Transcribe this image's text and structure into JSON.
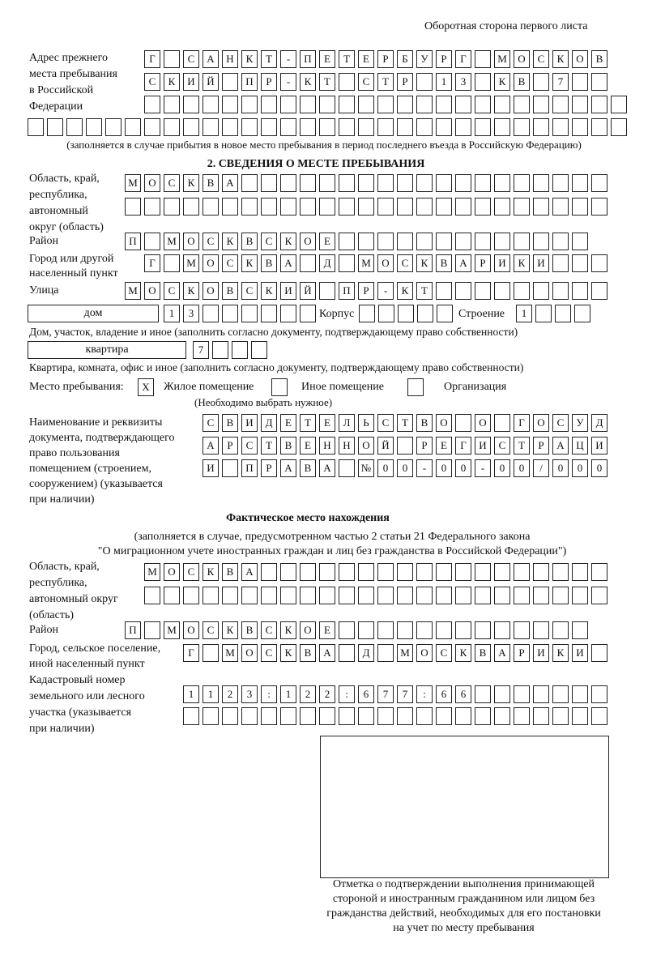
{
  "header": {
    "page_side": "Оборотная сторона первого листа"
  },
  "previous_address": {
    "label": [
      "Адрес прежнего",
      "места пребывания",
      "в Российской",
      "Федерации"
    ],
    "rows": [
      [
        "Г",
        " ",
        "С",
        "А",
        "Н",
        "К",
        "Т",
        "-",
        "П",
        "Е",
        "Т",
        "Е",
        "Р",
        "Б",
        "У",
        "Р",
        "Г",
        " ",
        "М",
        "О",
        "С",
        "К",
        "О",
        "В"
      ],
      [
        "С",
        "К",
        "И",
        "Й",
        " ",
        "П",
        "Р",
        "-",
        "К",
        "Т",
        " ",
        "С",
        "Т",
        "Р",
        " ",
        "1",
        "3",
        " ",
        "К",
        "В",
        " ",
        "7",
        " ",
        " "
      ],
      [
        " ",
        " ",
        " ",
        " ",
        " ",
        " ",
        " ",
        " ",
        " ",
        " ",
        " ",
        " ",
        " ",
        " ",
        " ",
        " ",
        " ",
        " ",
        " ",
        " ",
        " ",
        " ",
        " ",
        " ",
        " "
      ],
      [
        " ",
        " ",
        " ",
        " ",
        " ",
        " ",
        " ",
        " ",
        " ",
        " ",
        " ",
        " ",
        " ",
        " ",
        " ",
        " ",
        " ",
        " ",
        " ",
        " ",
        " ",
        " ",
        " ",
        " ",
        " ",
        " ",
        " ",
        " ",
        " ",
        " ",
        " "
      ]
    ],
    "note": "(заполняется в случае прибытия в новое место пребывания в период последнего въезда в Российскую Федерацию)"
  },
  "section2": {
    "title": "2. СВЕДЕНИЯ О МЕСТЕ ПРЕБЫВАНИЯ",
    "region_label": [
      "Область, край,",
      "республика,",
      "автономный",
      "округ (область)"
    ],
    "region_rows": [
      [
        "М",
        "О",
        "С",
        "К",
        "В",
        "А",
        " ",
        " ",
        " ",
        " ",
        " ",
        " ",
        " ",
        " ",
        " ",
        " ",
        " ",
        " ",
        " ",
        " ",
        " ",
        " ",
        " ",
        " ",
        " "
      ],
      [
        " ",
        " ",
        " ",
        " ",
        " ",
        " ",
        " ",
        " ",
        " ",
        " ",
        " ",
        " ",
        " ",
        " ",
        " ",
        " ",
        " ",
        " ",
        " ",
        " ",
        " ",
        " ",
        " ",
        " ",
        " "
      ]
    ],
    "district_label": "Район",
    "district_row": [
      "П",
      " ",
      "М",
      "О",
      "С",
      "К",
      "В",
      "С",
      "К",
      "О",
      "Е",
      " ",
      " ",
      " ",
      " ",
      " ",
      " ",
      " ",
      " ",
      " ",
      " ",
      " ",
      " ",
      " "
    ],
    "city_label": [
      "Город или другой",
      "населенный пункт"
    ],
    "city_row": [
      "Г",
      " ",
      "М",
      "О",
      "С",
      "К",
      "В",
      "А",
      " ",
      "Д",
      " ",
      "М",
      "О",
      "С",
      "К",
      "В",
      "А",
      "Р",
      "И",
      "К",
      "И",
      " ",
      " ",
      " "
    ],
    "street_label": "Улица",
    "street_row": [
      "М",
      "О",
      "С",
      "К",
      "О",
      "В",
      "С",
      "К",
      "И",
      "Й",
      " ",
      "П",
      "Р",
      "-",
      "К",
      "Т",
      " ",
      " ",
      " ",
      " ",
      " ",
      " ",
      " ",
      " ",
      " "
    ],
    "house_type": "дом",
    "house_row": [
      "1",
      "3",
      " ",
      " ",
      " ",
      " ",
      " ",
      " "
    ],
    "korpus_label": "Корпус",
    "korpus_row": [
      " ",
      " ",
      " ",
      " ",
      " "
    ],
    "building_label": "Строение",
    "building_row": [
      "1",
      " ",
      " ",
      " "
    ],
    "house_note": "Дом, участок, владение и иное (заполнить согласно документу, подтверждающему право собственности)",
    "flat_type": "квартира",
    "flat_row": [
      "7",
      " ",
      " ",
      " "
    ],
    "flat_note": "Квартира, комната, офис и иное (заполнить согласно документу, подтверждающему право собственности)",
    "stay_place_label": "Место пребывания:",
    "stay_options": [
      {
        "label": "Жилое помещение",
        "mark": "X"
      },
      {
        "label": "Иное помещение",
        "mark": ""
      },
      {
        "label": "Организация",
        "mark": ""
      }
    ],
    "stay_note": "(Необходимо выбрать нужное)",
    "doc_label": [
      "Наименование и реквизиты",
      "документа, подтверждающего",
      "право пользования",
      "помещением (строением,",
      "сооружением) (указывается",
      "при наличии)"
    ],
    "doc_rows": [
      [
        "С",
        "В",
        "И",
        "Д",
        "Е",
        "Т",
        "Е",
        "Л",
        "Ь",
        "С",
        "Т",
        "В",
        "О",
        " ",
        "О",
        " ",
        "Г",
        "О",
        "С",
        "У",
        "Д"
      ],
      [
        "А",
        "Р",
        "С",
        "Т",
        "В",
        "Е",
        "Н",
        "Н",
        "О",
        "Й",
        " ",
        "Р",
        "Е",
        "Г",
        "И",
        "С",
        "Т",
        "Р",
        "А",
        "Ц",
        "И"
      ],
      [
        "И",
        " ",
        "П",
        "Р",
        "А",
        "В",
        "А",
        " ",
        "№",
        "0",
        "0",
        "-",
        "0",
        "0",
        "-",
        "0",
        "0",
        "/",
        "0",
        "0",
        "0"
      ]
    ]
  },
  "actual": {
    "title": "Фактическое место нахождения",
    "note_lines": [
      "(заполняется в случае, предусмотренном частью 2 статьи 21 Федерального закона",
      "\"О миграционном учете иностранных граждан и лиц без гражданства в Российской Федерации\")"
    ],
    "region_label": [
      "Область, край,",
      "республика,",
      "автономный округ",
      "(область)"
    ],
    "region_rows": [
      [
        "М",
        "О",
        "С",
        "К",
        "В",
        "А",
        " ",
        " ",
        " ",
        " ",
        " ",
        " ",
        " ",
        " ",
        " ",
        " ",
        " ",
        " ",
        " ",
        " ",
        " ",
        " ",
        " ",
        " "
      ],
      [
        " ",
        " ",
        " ",
        " ",
        " ",
        " ",
        " ",
        " ",
        " ",
        " ",
        " ",
        " ",
        " ",
        " ",
        " ",
        " ",
        " ",
        " ",
        " ",
        " ",
        " ",
        " ",
        " ",
        " "
      ]
    ],
    "district_label": "Район",
    "district_row": [
      "П",
      " ",
      "М",
      "О",
      "С",
      "К",
      "В",
      "С",
      "К",
      "О",
      "Е",
      " ",
      " ",
      " ",
      " ",
      " ",
      " ",
      " ",
      " ",
      " ",
      " ",
      " ",
      " ",
      " "
    ],
    "city_label": [
      "Город, сельское поселение,",
      "иной населенный пункт"
    ],
    "city_row": [
      "Г",
      " ",
      "М",
      "О",
      "С",
      "К",
      "В",
      "А",
      " ",
      "Д",
      " ",
      "М",
      "О",
      "С",
      "К",
      "В",
      "А",
      "Р",
      "И",
      "К",
      "И",
      " "
    ],
    "cadastral_label": [
      "Кадастровый номер",
      "земельного или лесного",
      "участка (указывается",
      "при наличии)"
    ],
    "cadastral_rows": [
      [
        "1",
        "1",
        "2",
        "3",
        ":",
        "1",
        "2",
        "2",
        ":",
        "6",
        "7",
        "7",
        ":",
        "6",
        "6",
        " ",
        " ",
        " ",
        " ",
        " ",
        " ",
        " "
      ],
      [
        " ",
        " ",
        " ",
        " ",
        " ",
        " ",
        " ",
        " ",
        " ",
        " ",
        " ",
        " ",
        " ",
        " ",
        " ",
        " ",
        " ",
        " ",
        " ",
        " ",
        " ",
        " "
      ]
    ]
  },
  "confirmation": {
    "caption": [
      "Отметка о подтверждении выполнения принимающей",
      "стороной и иностранным гражданином или лицом без",
      "гражданства действий, необходимых для его постановки",
      "на учет по месту пребывания"
    ]
  }
}
